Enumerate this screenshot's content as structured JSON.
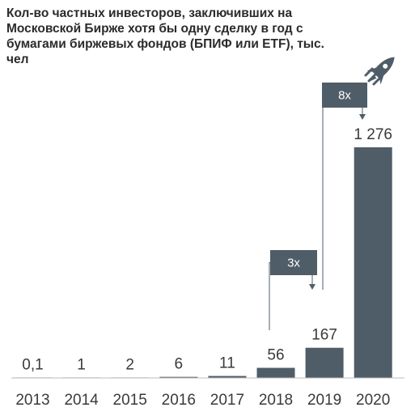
{
  "title": "Кол-во частных инвесторов, заключивших на Московской Бирже хотя бы одну сделку в год с бумагами биржевых фондов (БПИФ или ETF), тыс. чел",
  "colors": {
    "bar": "#4f5d68",
    "text": "#3a3a3a",
    "axis": "#bdbdbd",
    "bracket": "#4f5d68"
  },
  "icon": "rocket-icon",
  "chart_data": {
    "type": "bar",
    "title": "Кол-во частных инвесторов, заключивших на Московской Бирже хотя бы одну сделку в год с бумагами биржевых фондов (БПИФ или ETF), тыс. чел",
    "categories": [
      "2013",
      "2014",
      "2015",
      "2016",
      "2017",
      "2018",
      "2019",
      "2020"
    ],
    "values": [
      0.1,
      1,
      2,
      6,
      11,
      56,
      167,
      1276
    ],
    "value_labels": [
      "0,1",
      "1",
      "2",
      "6",
      "11",
      "56",
      "167",
      "1 276"
    ],
    "xlabel": "",
    "ylabel": "",
    "ylim": [
      0,
      1276
    ],
    "grid": false,
    "annotations": [
      {
        "label": "3x",
        "from": "2018",
        "to": "2019"
      },
      {
        "label": "8x",
        "from": "2019",
        "to": "2020"
      }
    ]
  }
}
